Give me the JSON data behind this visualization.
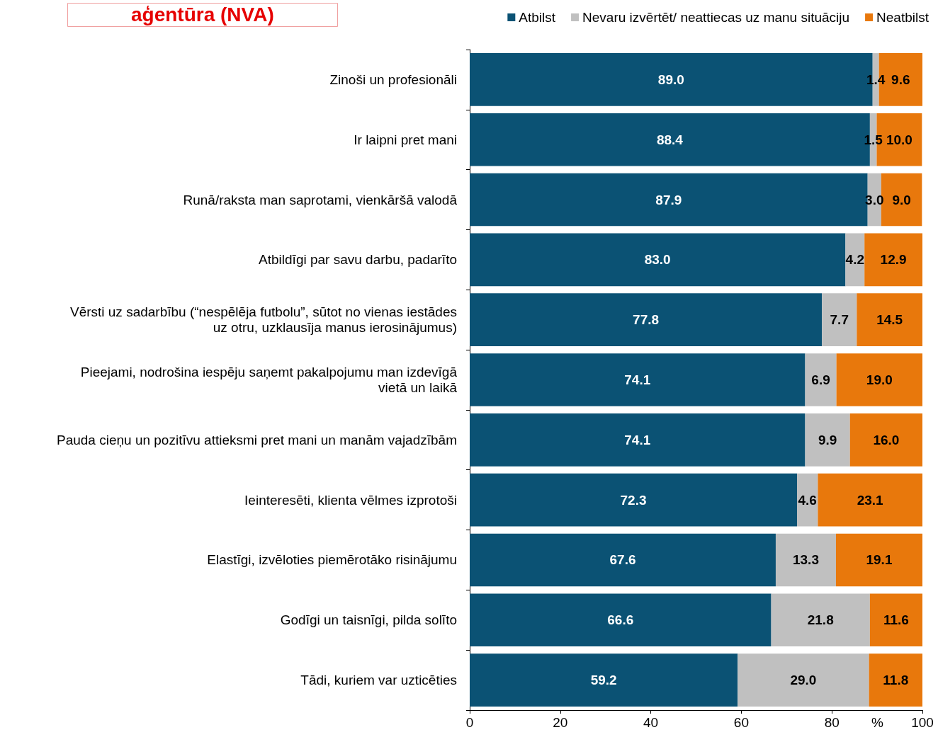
{
  "chart_data": {
    "type": "bar",
    "orientation": "horizontal",
    "stacked": true,
    "title": "aģentūra (NVA)",
    "xlabel": "%",
    "categories": [
      "Zinoši un profesionāli",
      "Ir laipni pret mani",
      "Runā/raksta man saprotami, vienkāršā valodā",
      "Atbildīgi par savu darbu, padarīto",
      "Vērsti uz sadarbību (“nespēlēja futbolu”, sūtot no vienas iestādes\nuz otru, uzklausīja manus ierosinājumus)",
      "Pieejami, nodrošina iespēju saņemt pakalpojumu man izdevīgā\nvietā un laikā",
      "Pauda cieņu un pozitīvu attieksmi pret mani un manām vajadzībām",
      "Ieinteresēti, klienta vēlmes izprotoši",
      "Elastīgi, izvēloties piemērotāko risinājumu",
      "Godīgi un taisnīgi, pilda solīto",
      "Tādi, kuriem var uzticēties"
    ],
    "series": [
      {
        "name": "Atbilst",
        "color": "#0b5274",
        "values": [
          89.0,
          88.4,
          87.9,
          83.0,
          77.8,
          74.1,
          74.1,
          72.3,
          67.6,
          66.6,
          59.2
        ],
        "value_labels": [
          "89.0",
          "88.4",
          "87.9",
          "83.0",
          "77.8",
          "74.1",
          "74.1",
          "72.3",
          "67.6",
          "66.6",
          "59.2"
        ]
      },
      {
        "name": "Nevaru izvērtēt/ neattiecas uz manu situāciju",
        "color": "#c0c0c0",
        "values": [
          1.4,
          1.5,
          3.0,
          4.2,
          7.7,
          6.9,
          9.9,
          4.6,
          13.3,
          21.8,
          29.0
        ],
        "value_labels": [
          "1.4",
          "1.5",
          "3.0",
          "4.2",
          "7.7",
          "6.9",
          "9.9",
          "4.6",
          "13.3",
          "21.8",
          "29.0"
        ]
      },
      {
        "name": "Neatbilst",
        "color": "#e8780c",
        "values": [
          9.6,
          10.0,
          9.0,
          12.9,
          14.5,
          19.0,
          16.0,
          23.1,
          19.1,
          11.6,
          11.8
        ],
        "value_labels": [
          "9.6",
          "10.0",
          "9.0",
          "12.9",
          "14.5",
          "19.0",
          "16.0",
          "23.1",
          "19.1",
          "11.6",
          "11.8"
        ]
      }
    ],
    "xlim": [
      0,
      100
    ],
    "xticks": [
      0,
      20,
      40,
      60,
      80,
      100
    ],
    "legend": "top right"
  }
}
